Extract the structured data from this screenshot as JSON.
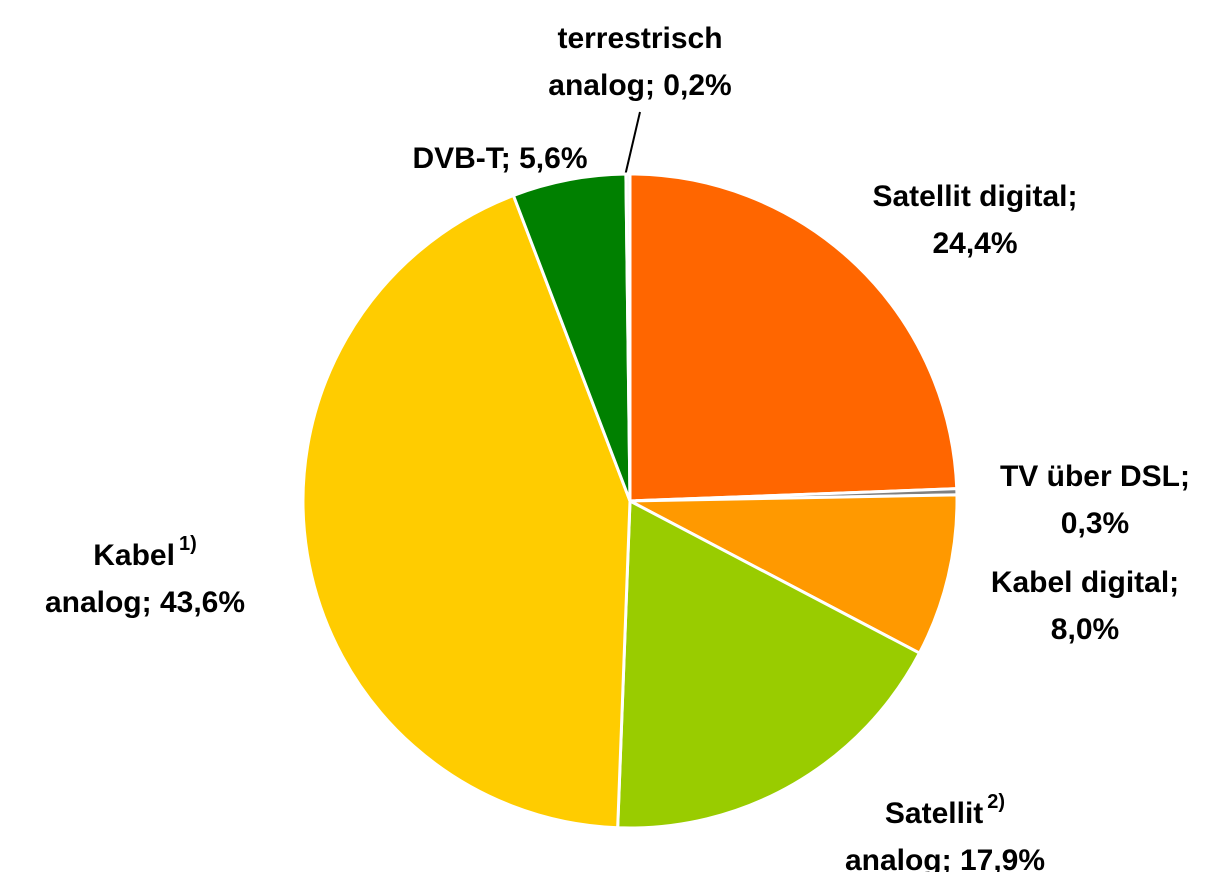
{
  "chart_data": {
    "type": "pie",
    "values": [
      24.4,
      0.3,
      8.0,
      17.9,
      43.6,
      5.6,
      0.2
    ],
    "labels": [
      [
        "Satellit digital;",
        "24,4%"
      ],
      [
        "TV über DSL;",
        "0,3%"
      ],
      [
        "Kabel digital;",
        "8,0%"
      ],
      [
        "Satellit",
        "analog; 17,9%"
      ],
      [
        "Kabel",
        "analog; 43,6%"
      ],
      [
        "DVB-T; 5,6%"
      ],
      [
        "terrestrisch",
        "analog; 0,2%"
      ]
    ],
    "footnotes": [
      null,
      null,
      null,
      "2)",
      "1)",
      null,
      null
    ],
    "colors": [
      "#ff6600",
      "#808080",
      "#ff9900",
      "#99cc00",
      "#ffcc00",
      "#008000",
      "#f4f4f4"
    ],
    "start_angle": 0,
    "direction": "clockwise"
  }
}
